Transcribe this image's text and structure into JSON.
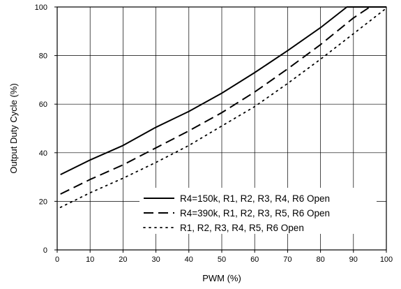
{
  "chart_data": {
    "type": "line",
    "title": "",
    "xlabel": "PWM (%)",
    "ylabel": "Output Duty Cycle (%)",
    "xlim": [
      0,
      100
    ],
    "ylim": [
      0,
      100
    ],
    "xticks": [
      0,
      10,
      20,
      30,
      40,
      50,
      60,
      70,
      80,
      90,
      100
    ],
    "yticks": [
      0,
      20,
      40,
      60,
      80,
      100
    ],
    "grid": true,
    "legend_position": "bottom-right",
    "series": [
      {
        "name": "R4=150k, R1, R2, R3, R4, R6 Open",
        "style": "solid",
        "color": "#000000",
        "x": [
          1,
          10,
          20,
          30,
          40,
          50,
          60,
          70,
          80,
          88,
          100
        ],
        "y": [
          31,
          37,
          43,
          50.5,
          57,
          64.5,
          73,
          82,
          91.5,
          100,
          100
        ]
      },
      {
        "name": "R4=390k, R1, R2, R3, R5, R6 Open",
        "style": "dashed",
        "color": "#000000",
        "x": [
          1,
          10,
          20,
          30,
          40,
          50,
          60,
          70,
          80,
          90,
          95,
          100
        ],
        "y": [
          23,
          29,
          35,
          42,
          49,
          56.5,
          65,
          74.5,
          84.5,
          95.5,
          100,
          100
        ]
      },
      {
        "name": "R1, R2, R3, R4, R5, R6 Open",
        "style": "dotted",
        "color": "#000000",
        "x": [
          1,
          10,
          20,
          30,
          40,
          50,
          60,
          70,
          80,
          90,
          100
        ],
        "y": [
          17.5,
          23.5,
          29.5,
          36,
          43,
          51,
          59,
          68.5,
          78.5,
          89,
          99.5
        ]
      }
    ]
  }
}
